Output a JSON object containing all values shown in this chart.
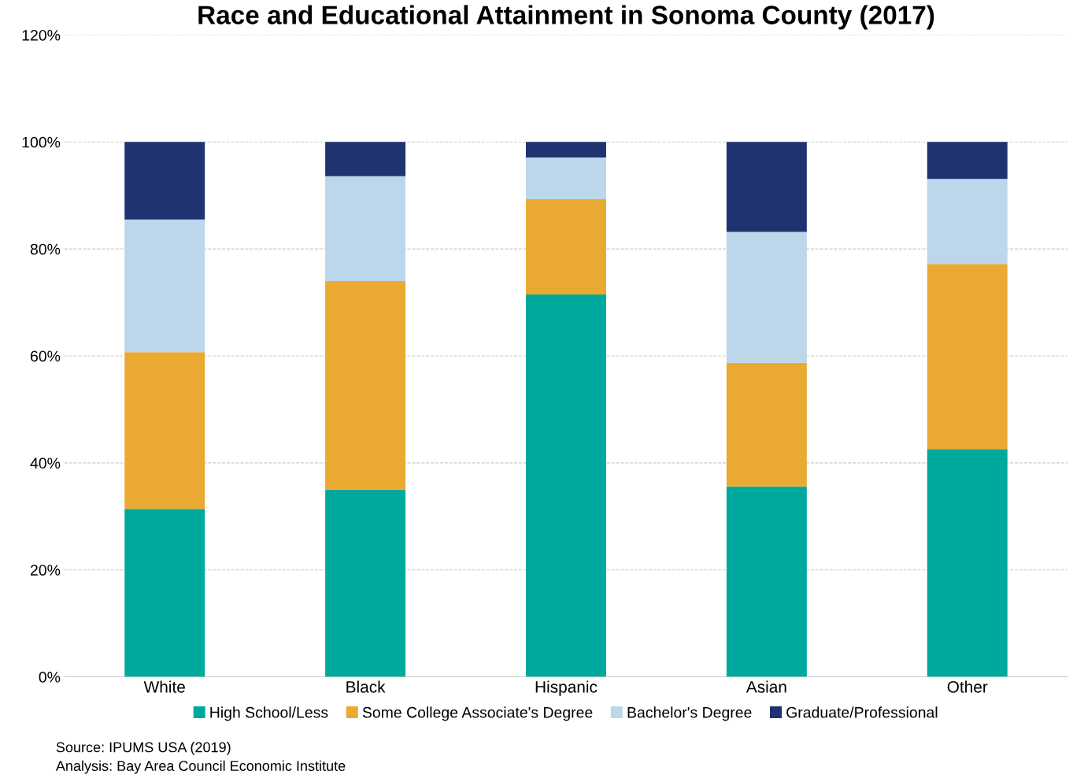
{
  "chart_data": {
    "type": "bar",
    "title": "Race and Educational Attainment in Sonoma County (2017)",
    "stacked": true,
    "categories": [
      "White",
      "Black",
      "Hispanic",
      "Asian",
      "Other"
    ],
    "series": [
      {
        "name": "High School/Less",
        "color": "#00a99d",
        "values": [
          31.4,
          35.0,
          71.5,
          35.6,
          42.6
        ]
      },
      {
        "name": "Some College Associate's Degree",
        "color": "#eaaa32",
        "values": [
          29.3,
          39.0,
          17.8,
          23.1,
          34.6
        ]
      },
      {
        "name": "Bachelor's Degree",
        "color": "#bcd6ea",
        "values": [
          24.8,
          19.6,
          7.8,
          24.5,
          15.9
        ]
      },
      {
        "name": "Graduate/Professional",
        "color": "#1f3370",
        "values": [
          14.5,
          6.4,
          2.9,
          16.8,
          6.9
        ]
      }
    ],
    "ylim": [
      0,
      120
    ],
    "yticks": [
      {
        "value": 0,
        "label": "0%"
      },
      {
        "value": 20,
        "label": "20%"
      },
      {
        "value": 40,
        "label": "40%"
      },
      {
        "value": 60,
        "label": "60%"
      },
      {
        "value": 80,
        "label": "80%"
      },
      {
        "value": 100,
        "label": "100%"
      },
      {
        "value": 120,
        "label": "120%"
      }
    ],
    "grid": "y",
    "legend": "bottom",
    "annotations": [
      "Source: IPUMS USA (2019)",
      "Analysis: Bay Area Council Economic Institute"
    ]
  }
}
